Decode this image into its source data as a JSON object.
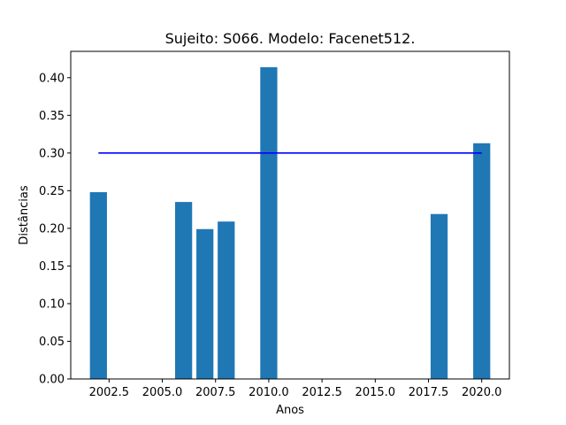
{
  "chart_data": {
    "type": "bar",
    "title": "Sujeito: S066. Modelo: Facenet512.",
    "xlabel": "Anos",
    "ylabel": "Distâncias",
    "x": [
      2002,
      2006,
      2007,
      2008,
      2010,
      2018,
      2020
    ],
    "values": [
      0.248,
      0.235,
      0.199,
      0.209,
      0.414,
      0.219,
      0.313
    ],
    "bar_width_years": 0.8,
    "bar_color": "#1f77b4",
    "threshold": {
      "value": 0.3,
      "x_start": 2002,
      "x_end": 2020,
      "color": "#0000ff"
    },
    "xlim": [
      2000.7,
      2021.3
    ],
    "ylim": [
      0,
      0.435
    ],
    "xticks": [
      2002.5,
      2005.0,
      2007.5,
      2010.0,
      2012.5,
      2015.0,
      2017.5,
      2020.0
    ],
    "xtick_labels": [
      "2002.5",
      "2005.0",
      "2007.5",
      "2010.0",
      "2012.5",
      "2015.0",
      "2017.5",
      "2020.0"
    ],
    "yticks": [
      0.0,
      0.05,
      0.1,
      0.15,
      0.2,
      0.25,
      0.3,
      0.35,
      0.4
    ],
    "ytick_labels": [
      "0.00",
      "0.05",
      "0.10",
      "0.15",
      "0.20",
      "0.25",
      "0.30",
      "0.35",
      "0.40"
    ],
    "grid": false,
    "legend": "none"
  }
}
